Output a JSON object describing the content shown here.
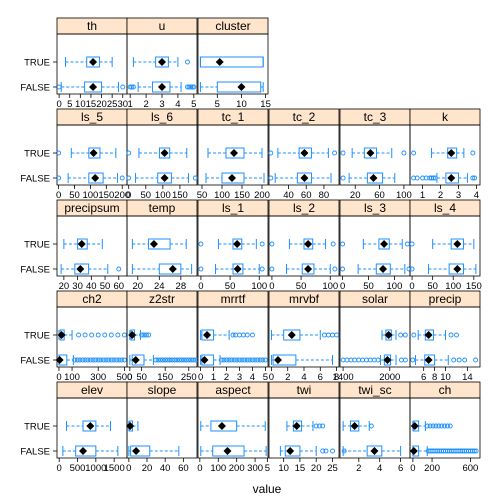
{
  "chart_data": {
    "type": "boxplot",
    "xlabel": "value",
    "groups": [
      "TRUE",
      "FALSE"
    ],
    "panels": [
      {
        "name": "th",
        "ticks": [
          0,
          5,
          10,
          15,
          20,
          25,
          30
        ],
        "range": [
          -1,
          32
        ],
        "boxes": {
          "TRUE": {
            "wlo": 3,
            "q1": 13,
            "med": 16,
            "q3": 19,
            "whi": 25,
            "out": []
          },
          "FALSE": {
            "wlo": 1,
            "q1": 12,
            "med": 16,
            "q3": 20,
            "whi": 28,
            "out": [
              0,
              30
            ]
          }
        }
      },
      {
        "name": "u",
        "ticks": [
          1,
          2,
          3,
          4,
          5
        ],
        "range": [
          0.8,
          5.2
        ],
        "boxes": {
          "TRUE": {
            "wlo": 1.2,
            "q1": 2.6,
            "med": 3.0,
            "q3": 3.4,
            "whi": 4.0,
            "out": [
              4.6
            ]
          },
          "FALSE": {
            "wlo": 1.5,
            "q1": 2.4,
            "med": 3.0,
            "q3": 3.5,
            "whi": 4.2,
            "out": [
              1.0,
              1.1,
              1.2,
              4.6,
              4.7,
              4.8,
              4.9,
              5.0
            ]
          }
        }
      },
      {
        "name": "cluster",
        "ticks": [
          5,
          10,
          15
        ],
        "range": [
          1,
          15.5
        ],
        "boxes": {
          "TRUE": {
            "wlo": 1.5,
            "q1": 1.5,
            "med": 5.5,
            "q3": 14.5,
            "whi": 14.5,
            "out": []
          },
          "FALSE": {
            "wlo": 1.5,
            "q1": 5.0,
            "med": 10.0,
            "q3": 14.0,
            "whi": 14.5,
            "out": []
          }
        }
      },
      {
        "name": "ls_5",
        "ticks": [
          0,
          50,
          100,
          150,
          200
        ],
        "range": [
          -5,
          215
        ],
        "boxes": {
          "TRUE": {
            "wlo": 40,
            "q1": 95,
            "med": 110,
            "q3": 130,
            "whi": 180,
            "out": [
              0
            ]
          },
          "FALSE": {
            "wlo": 30,
            "q1": 95,
            "med": 115,
            "q3": 140,
            "whi": 185,
            "out": [
              0,
              200
            ]
          }
        }
      },
      {
        "name": "ls_6",
        "ticks": [
          0,
          50,
          100,
          150
        ],
        "range": [
          -5,
          200
        ],
        "boxes": {
          "TRUE": {
            "wlo": 30,
            "q1": 90,
            "med": 105,
            "q3": 120,
            "whi": 170,
            "out": [
              0
            ]
          },
          "FALSE": {
            "wlo": 20,
            "q1": 85,
            "med": 105,
            "q3": 125,
            "whi": 175,
            "out": [
              0,
              195
            ]
          }
        }
      },
      {
        "name": "tc_1",
        "ticks": [
          50,
          100,
          150,
          200
        ],
        "range": [
          40,
          215
        ],
        "boxes": {
          "TRUE": {
            "wlo": 65,
            "q1": 110,
            "med": 130,
            "q3": 155,
            "whi": 200,
            "out": []
          },
          "FALSE": {
            "wlo": 60,
            "q1": 100,
            "med": 125,
            "q3": 155,
            "whi": 205,
            "out": []
          }
        }
      },
      {
        "name": "tc_2",
        "ticks": [
          40,
          60,
          80
        ],
        "range": [
          18,
          97
        ],
        "boxes": {
          "TRUE": {
            "wlo": 28,
            "q1": 52,
            "med": 58,
            "q3": 66,
            "whi": 85,
            "out": [
              20,
              92
            ]
          },
          "FALSE": {
            "wlo": 25,
            "q1": 50,
            "med": 58,
            "q3": 66,
            "whi": 88,
            "out": [
              20
            ]
          }
        }
      },
      {
        "name": "tc_3",
        "ticks": [
          20,
          60,
          100
        ],
        "range": [
          -5,
          110
        ],
        "boxes": {
          "TRUE": {
            "wlo": 15,
            "q1": 35,
            "med": 45,
            "q3": 55,
            "whi": 80,
            "out": [
              0,
              100
            ]
          },
          "FALSE": {
            "wlo": 10,
            "q1": 40,
            "med": 50,
            "q3": 65,
            "whi": 85,
            "out": [
              0
            ]
          }
        }
      },
      {
        "name": "k",
        "ticks": [
          1,
          2,
          3,
          4
        ],
        "range": [
          0.3,
          4.2
        ],
        "boxes": {
          "TRUE": {
            "wlo": 1.5,
            "q1": 2.4,
            "med": 2.6,
            "q3": 2.9,
            "whi": 3.3,
            "out": [
              0.5,
              3.8
            ]
          },
          "FALSE": {
            "wlo": 1.8,
            "q1": 2.3,
            "med": 2.6,
            "q3": 3.0,
            "whi": 3.5,
            "out": [
              0.5,
              0.7,
              1.0,
              1.2,
              1.4,
              1.5,
              1.6,
              1.7,
              3.8,
              3.9
            ]
          }
        }
      },
      {
        "name": "precipsum",
        "ticks": [
          20,
          30,
          40,
          50,
          60
        ],
        "range": [
          15,
          66
        ],
        "boxes": {
          "TRUE": {
            "wlo": 20,
            "q1": 30,
            "med": 33,
            "q3": 37,
            "whi": 48,
            "out": []
          },
          "FALSE": {
            "wlo": 18,
            "q1": 28,
            "med": 32,
            "q3": 38,
            "whi": 52,
            "out": [
              60
            ]
          }
        }
      },
      {
        "name": "temp",
        "ticks": [
          20,
          24,
          28
        ],
        "range": [
          18,
          31
        ],
        "boxes": {
          "TRUE": {
            "wlo": 19,
            "q1": 22,
            "med": 23,
            "q3": 26,
            "whi": 29,
            "out": []
          },
          "FALSE": {
            "wlo": 19,
            "q1": 24,
            "med": 26.5,
            "q3": 28,
            "whi": 30,
            "out": []
          }
        }
      },
      {
        "name": "ls_1",
        "ticks": [
          0,
          50,
          100
        ],
        "range": [
          -5,
          115
        ],
        "boxes": {
          "TRUE": {
            "wlo": 30,
            "q1": 55,
            "med": 62,
            "q3": 70,
            "whi": 95,
            "out": [
              0,
              105
            ]
          },
          "FALSE": {
            "wlo": 25,
            "q1": 55,
            "med": 63,
            "q3": 72,
            "whi": 100,
            "out": [
              0,
              105
            ]
          }
        }
      },
      {
        "name": "ls_2",
        "ticks": [
          0,
          50,
          100
        ],
        "range": [
          -5,
          115
        ],
        "boxes": {
          "TRUE": {
            "wlo": 30,
            "q1": 55,
            "med": 62,
            "q3": 70,
            "whi": 92,
            "out": [
              0,
              105
            ]
          },
          "FALSE": {
            "wlo": 25,
            "q1": 52,
            "med": 62,
            "q3": 72,
            "whi": 100,
            "out": [
              0,
              108
            ]
          }
        }
      },
      {
        "name": "ls_3",
        "ticks": [
          0,
          50,
          100
        ],
        "range": [
          -5,
          130
        ],
        "boxes": {
          "TRUE": {
            "wlo": 40,
            "q1": 70,
            "med": 80,
            "q3": 90,
            "whi": 115,
            "out": [
              0,
              125
            ]
          },
          "FALSE": {
            "wlo": 30,
            "q1": 65,
            "med": 78,
            "q3": 92,
            "whi": 120,
            "out": [
              0,
              128
            ]
          }
        }
      },
      {
        "name": "ls_4",
        "ticks": [
          0,
          50,
          100,
          150
        ],
        "range": [
          -5,
          165
        ],
        "boxes": {
          "TRUE": {
            "wlo": 50,
            "q1": 95,
            "med": 110,
            "q3": 125,
            "whi": 150,
            "out": [
              0
            ]
          },
          "FALSE": {
            "wlo": 40,
            "q1": 90,
            "med": 110,
            "q3": 125,
            "whi": 155,
            "out": [
              0
            ]
          }
        }
      },
      {
        "name": "ch2",
        "ticks": [
          0,
          100,
          300,
          500
        ],
        "range": [
          -15,
          520
        ],
        "boxes": {
          "TRUE": {
            "wlo": 0,
            "q1": 10,
            "med": 20,
            "q3": 40,
            "whi": 100,
            "out": [
              150,
              200,
              250,
              300,
              350,
              400,
              450,
              500
            ]
          },
          "FALSE": {
            "wlo": 0,
            "q1": 0,
            "med": 5,
            "q3": 60,
            "whi": 110,
            "out": [
              120,
              140,
              160,
              180,
              200,
              220,
              240,
              260,
              280,
              300,
              320,
              340,
              360,
              380,
              400,
              420,
              440,
              460,
              480,
              500
            ]
          }
        }
      },
      {
        "name": "z2str",
        "ticks": [
          0,
          50,
          150,
          250
        ],
        "range": [
          -12,
          285
        ],
        "boxes": {
          "TRUE": {
            "wlo": 0,
            "q1": 5,
            "med": 10,
            "q3": 20,
            "whi": 45,
            "out": [
              50,
              60,
              70,
              80
            ]
          },
          "FALSE": {
            "wlo": 0,
            "q1": 10,
            "med": 25,
            "q3": 60,
            "whi": 100,
            "out": [
              110,
              120,
              130,
              140,
              150,
              160,
              170,
              180,
              190,
              200,
              210,
              220,
              230,
              240,
              250,
              260,
              270,
              280
            ]
          }
        }
      },
      {
        "name": "mrrtf",
        "ticks": [
          0,
          1,
          2,
          3,
          4,
          5
        ],
        "range": [
          -0.2,
          5.2
        ],
        "boxes": {
          "TRUE": {
            "wlo": 0,
            "q1": 0.1,
            "med": 0.5,
            "q3": 1.0,
            "whi": 2.2,
            "out": [
              2.5,
              2.7,
              3.0,
              3.3,
              3.6,
              4.0
            ]
          },
          "FALSE": {
            "wlo": 0,
            "q1": 0.1,
            "med": 0.3,
            "q3": 1.0,
            "whi": 1.5,
            "out": [
              1.6,
              1.8,
              2.0,
              2.2,
              2.4,
              2.6,
              2.8,
              3.0,
              3.2,
              3.4,
              3.6,
              3.8,
              4.0,
              4.2,
              4.4,
              4.6,
              4.8,
              5.0
            ]
          }
        }
      },
      {
        "name": "mrvbf",
        "ticks": [
          0,
          2,
          4,
          6,
          8
        ],
        "range": [
          -0.3,
          8.3
        ],
        "boxes": {
          "TRUE": {
            "wlo": 0,
            "q1": 1.5,
            "med": 2.5,
            "q3": 3.5,
            "whi": 6.0,
            "out": [
              6.5,
              7.0,
              7.5,
              8.0
            ]
          },
          "FALSE": {
            "wlo": 0,
            "q1": 0.2,
            "med": 0.8,
            "q3": 3.0,
            "whi": 7.5,
            "out": []
          }
        }
      },
      {
        "name": "solar",
        "ticks": [
          1400,
          2000
        ],
        "range": [
          1360,
          2260
        ],
        "boxes": {
          "TRUE": {
            "wlo": 1900,
            "q1": 1950,
            "med": 1985,
            "q3": 2020,
            "whi": 2080,
            "out": [
              2140,
              2200
            ]
          },
          "FALSE": {
            "wlo": 1880,
            "q1": 1930,
            "med": 1970,
            "q3": 2010,
            "whi": 2080,
            "out": [
              1400,
              1450,
              1500,
              1550,
              1600,
              1650,
              1700,
              1750,
              1800,
              1850,
              2150,
              2200
            ]
          }
        }
      },
      {
        "name": "precip",
        "ticks": [
          6,
          8,
          10,
          14
        ],
        "range": [
          3.5,
          16.3
        ],
        "boxes": {
          "TRUE": {
            "wlo": 5.0,
            "q1": 6.3,
            "med": 6.9,
            "q3": 7.8,
            "whi": 10.0,
            "out": [
              4.2,
              11.0,
              12.0
            ]
          },
          "FALSE": {
            "wlo": 4.5,
            "q1": 6.2,
            "med": 6.9,
            "q3": 8.0,
            "whi": 10.5,
            "out": [
              4.0,
              11.5,
              12.5,
              13.5,
              15.5
            ]
          }
        }
      },
      {
        "name": "elev",
        "ticks": [
          0,
          500,
          1000,
          1500
        ],
        "range": [
          -60,
          1850
        ],
        "boxes": {
          "TRUE": {
            "wlo": 200,
            "q1": 650,
            "med": 850,
            "q3": 1000,
            "whi": 1400,
            "out": []
          },
          "FALSE": {
            "wlo": 100,
            "q1": 450,
            "med": 650,
            "q3": 1000,
            "whi": 1600,
            "out": []
          }
        }
      },
      {
        "name": "slope",
        "ticks": [
          0,
          20,
          40,
          60
        ],
        "range": [
          -2,
          75
        ],
        "boxes": {
          "TRUE": {
            "wlo": 0,
            "q1": 0.5,
            "med": 1.5,
            "q3": 4,
            "whi": 10,
            "out": []
          },
          "FALSE": {
            "wlo": 0,
            "q1": 2,
            "med": 8,
            "q3": 23,
            "whi": 55,
            "out": []
          }
        }
      },
      {
        "name": "aspect",
        "ticks": [
          0,
          100,
          200,
          300
        ],
        "range": [
          -10,
          370
        ],
        "boxes": {
          "TRUE": {
            "wlo": 5,
            "q1": 60,
            "med": 120,
            "q3": 200,
            "whi": 355,
            "out": []
          },
          "FALSE": {
            "wlo": 5,
            "q1": 70,
            "med": 150,
            "q3": 240,
            "whi": 360,
            "out": []
          }
        }
      },
      {
        "name": "twi",
        "ticks": [
          5,
          10,
          15,
          20,
          25
        ],
        "range": [
          5.5,
          27
        ],
        "boxes": {
          "TRUE": {
            "wlo": 11,
            "q1": 13,
            "med": 14,
            "q3": 15.5,
            "whi": 19,
            "out": [
              20,
              21,
              22
            ]
          },
          "FALSE": {
            "wlo": 9,
            "q1": 10.5,
            "med": 12,
            "q3": 15,
            "whi": 20,
            "out": [
              22,
              23,
              25
            ]
          }
        }
      },
      {
        "name": "twi_sc",
        "ticks": [
          2,
          4,
          6
        ],
        "range": [
          0.2,
          6.9
        ],
        "boxes": {
          "TRUE": {
            "wlo": 0.5,
            "q1": 1.2,
            "med": 1.6,
            "q3": 2.0,
            "whi": 3.0,
            "out": [
              3.2
            ]
          },
          "FALSE": {
            "wlo": 0.5,
            "q1": 2.8,
            "med": 3.5,
            "q3": 4.2,
            "whi": 6.0,
            "out": [
              0.6
            ]
          }
        }
      },
      {
        "name": "ch",
        "ticks": [
          0,
          200,
          600
        ],
        "range": [
          -30,
          700
        ],
        "boxes": {
          "TRUE": {
            "wlo": 0,
            "q1": 5,
            "med": 20,
            "q3": 60,
            "whi": 130,
            "out": [
              150,
              180,
              210,
              240,
              270,
              300,
              330,
              360,
              390
            ]
          },
          "FALSE": {
            "wlo": 0,
            "q1": 0,
            "med": 10,
            "q3": 60,
            "whi": 150,
            "out": [
              160,
              180,
              200,
              220,
              240,
              260,
              280,
              300,
              320,
              340,
              360,
              380,
              400,
              420,
              440,
              460,
              480,
              500,
              520,
              540,
              560,
              580,
              600,
              620,
              640,
              660
            ]
          }
        }
      }
    ]
  }
}
